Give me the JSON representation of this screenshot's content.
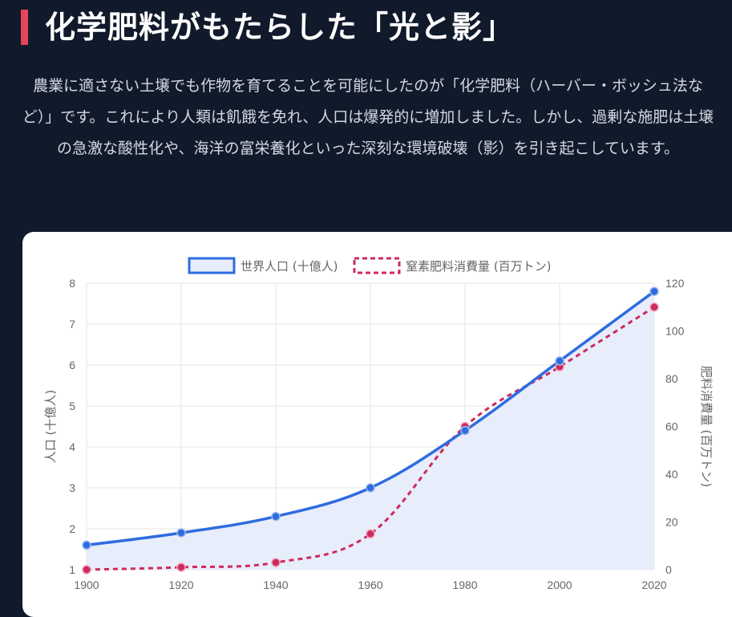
{
  "header": {
    "title": "化学肥料がもたらした「光と影」",
    "description": "農業に適さない土壌でも作物を育てることを可能にしたのが「化学肥料（ハーバー・ボッシュ法など）」です。これにより人類は飢餓を免れ、人口は爆発的に増加しました。しかし、過剰な施肥は土壌の急激な酸性化や、海洋の富栄養化といった深刻な環境破壊（影）を引き起こしています。"
  },
  "chart_data": {
    "type": "line",
    "x": [
      1900,
      1920,
      1940,
      1960,
      1980,
      2000,
      2020
    ],
    "series": [
      {
        "name": "世界人口 (十億人)",
        "values": [
          1.6,
          1.9,
          2.3,
          3.0,
          4.4,
          6.1,
          7.8
        ],
        "axis": "left",
        "color": "#2e6cdf",
        "fill": "#e8edfb",
        "style": "solid"
      },
      {
        "name": "窒素肥料消費量 (百万トン)",
        "values": [
          0,
          1,
          3,
          15,
          60,
          85,
          110
        ],
        "axis": "right",
        "color": "#cc2b5e",
        "style": "dashed"
      }
    ],
    "y_left": {
      "label": "人口 (十億人)",
      "ticks": [
        1,
        2,
        3,
        4,
        5,
        6,
        7,
        8
      ],
      "range": [
        1,
        8
      ]
    },
    "y_right": {
      "label": "肥料消費量 (百万トン)",
      "ticks": [
        0,
        20,
        40,
        60,
        80,
        100,
        120
      ],
      "range": [
        0,
        120
      ]
    },
    "x_ticks": [
      "1900",
      "1920",
      "1940",
      "1960",
      "1980",
      "2000",
      "2020"
    ],
    "grid": true,
    "legend_position": "top"
  }
}
